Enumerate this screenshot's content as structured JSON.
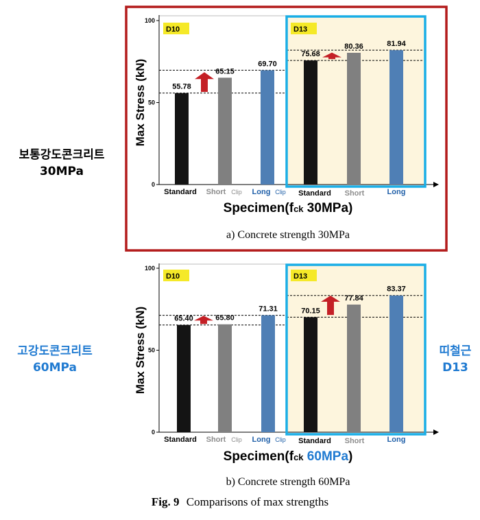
{
  "side_labels": {
    "left_top": {
      "line1": "보통강도콘크리트",
      "line2": "30MPa",
      "color": "#000000"
    },
    "left_bottom": {
      "line1": "고강도콘크리트",
      "line2": "60MPa",
      "color": "#1f7ad1"
    },
    "right_bottom": {
      "line1": "띠철근",
      "line2": "D13",
      "color": "#1f7ad1"
    }
  },
  "figure_caption": {
    "prefix": "Fig. 9",
    "text": "Comparisons of  max strengths"
  },
  "colors": {
    "highlight_red": "#b31b1b",
    "highlight_blue": "#1aaee6",
    "tag_yellow": "#f5e928",
    "d13_panel_fill": "#fdf5dd",
    "arrow_red": "#c42026",
    "bar_standard": "#141414",
    "bar_short": "#808080",
    "bar_long": "#4f7fb5",
    "label_gray": "#8c8c8c",
    "label_blue": "#1f5fa8"
  },
  "chart_data": [
    {
      "type": "bar",
      "ylabel": "Max Stress (kN)",
      "xlabel_main": "Specimen(f",
      "xlabel_sub": "ck",
      "xlabel_value": "30MPa",
      "xlabel_value_color": "#000000",
      "caption": "a) Concrete strength 30MPa",
      "ylim": [
        0,
        100
      ],
      "yticks": [
        "0",
        "50",
        "100"
      ],
      "groups": [
        {
          "tag": "D10",
          "categories": [
            "Standard",
            "Short",
            "Long"
          ],
          "clip_labels": [
            "Clip",
            "Clip"
          ],
          "values": [
            55.78,
            65.15,
            69.7
          ],
          "value_labels": [
            "55.78",
            "65.15",
            "69.70"
          ]
        },
        {
          "tag": "D13",
          "categories": [
            "Standard",
            "Short",
            "Long"
          ],
          "values": [
            75.68,
            80.36,
            81.94
          ],
          "value_labels": [
            "75.68",
            "80.36",
            "81.94"
          ]
        }
      ],
      "reference_lines": [
        55.78,
        69.7,
        75.68,
        81.94
      ],
      "grid": false,
      "legend": "none"
    },
    {
      "type": "bar",
      "ylabel": "Max Stress (kN)",
      "xlabel_main": "Specimen(f",
      "xlabel_sub": "ck",
      "xlabel_value": "60MPa",
      "xlabel_value_color": "#1f7ad1",
      "caption": "b) Concrete strength 60MPa",
      "ylim": [
        0,
        100
      ],
      "yticks": [
        "0",
        "50",
        "100"
      ],
      "groups": [
        {
          "tag": "D10",
          "categories": [
            "Standard",
            "Short",
            "Long"
          ],
          "clip_labels": [
            "Clip",
            "Clip"
          ],
          "values": [
            65.4,
            65.8,
            71.31
          ],
          "value_labels": [
            "65.40",
            "65.80",
            "71.31"
          ]
        },
        {
          "tag": "D13",
          "categories": [
            "Standard",
            "Short",
            "Long"
          ],
          "values": [
            70.15,
            77.84,
            83.37
          ],
          "value_labels": [
            "70.15",
            "77.84",
            "83.37"
          ]
        }
      ],
      "reference_lines": [
        65.4,
        71.31,
        70.15,
        83.37
      ],
      "grid": false,
      "legend": "none"
    }
  ]
}
